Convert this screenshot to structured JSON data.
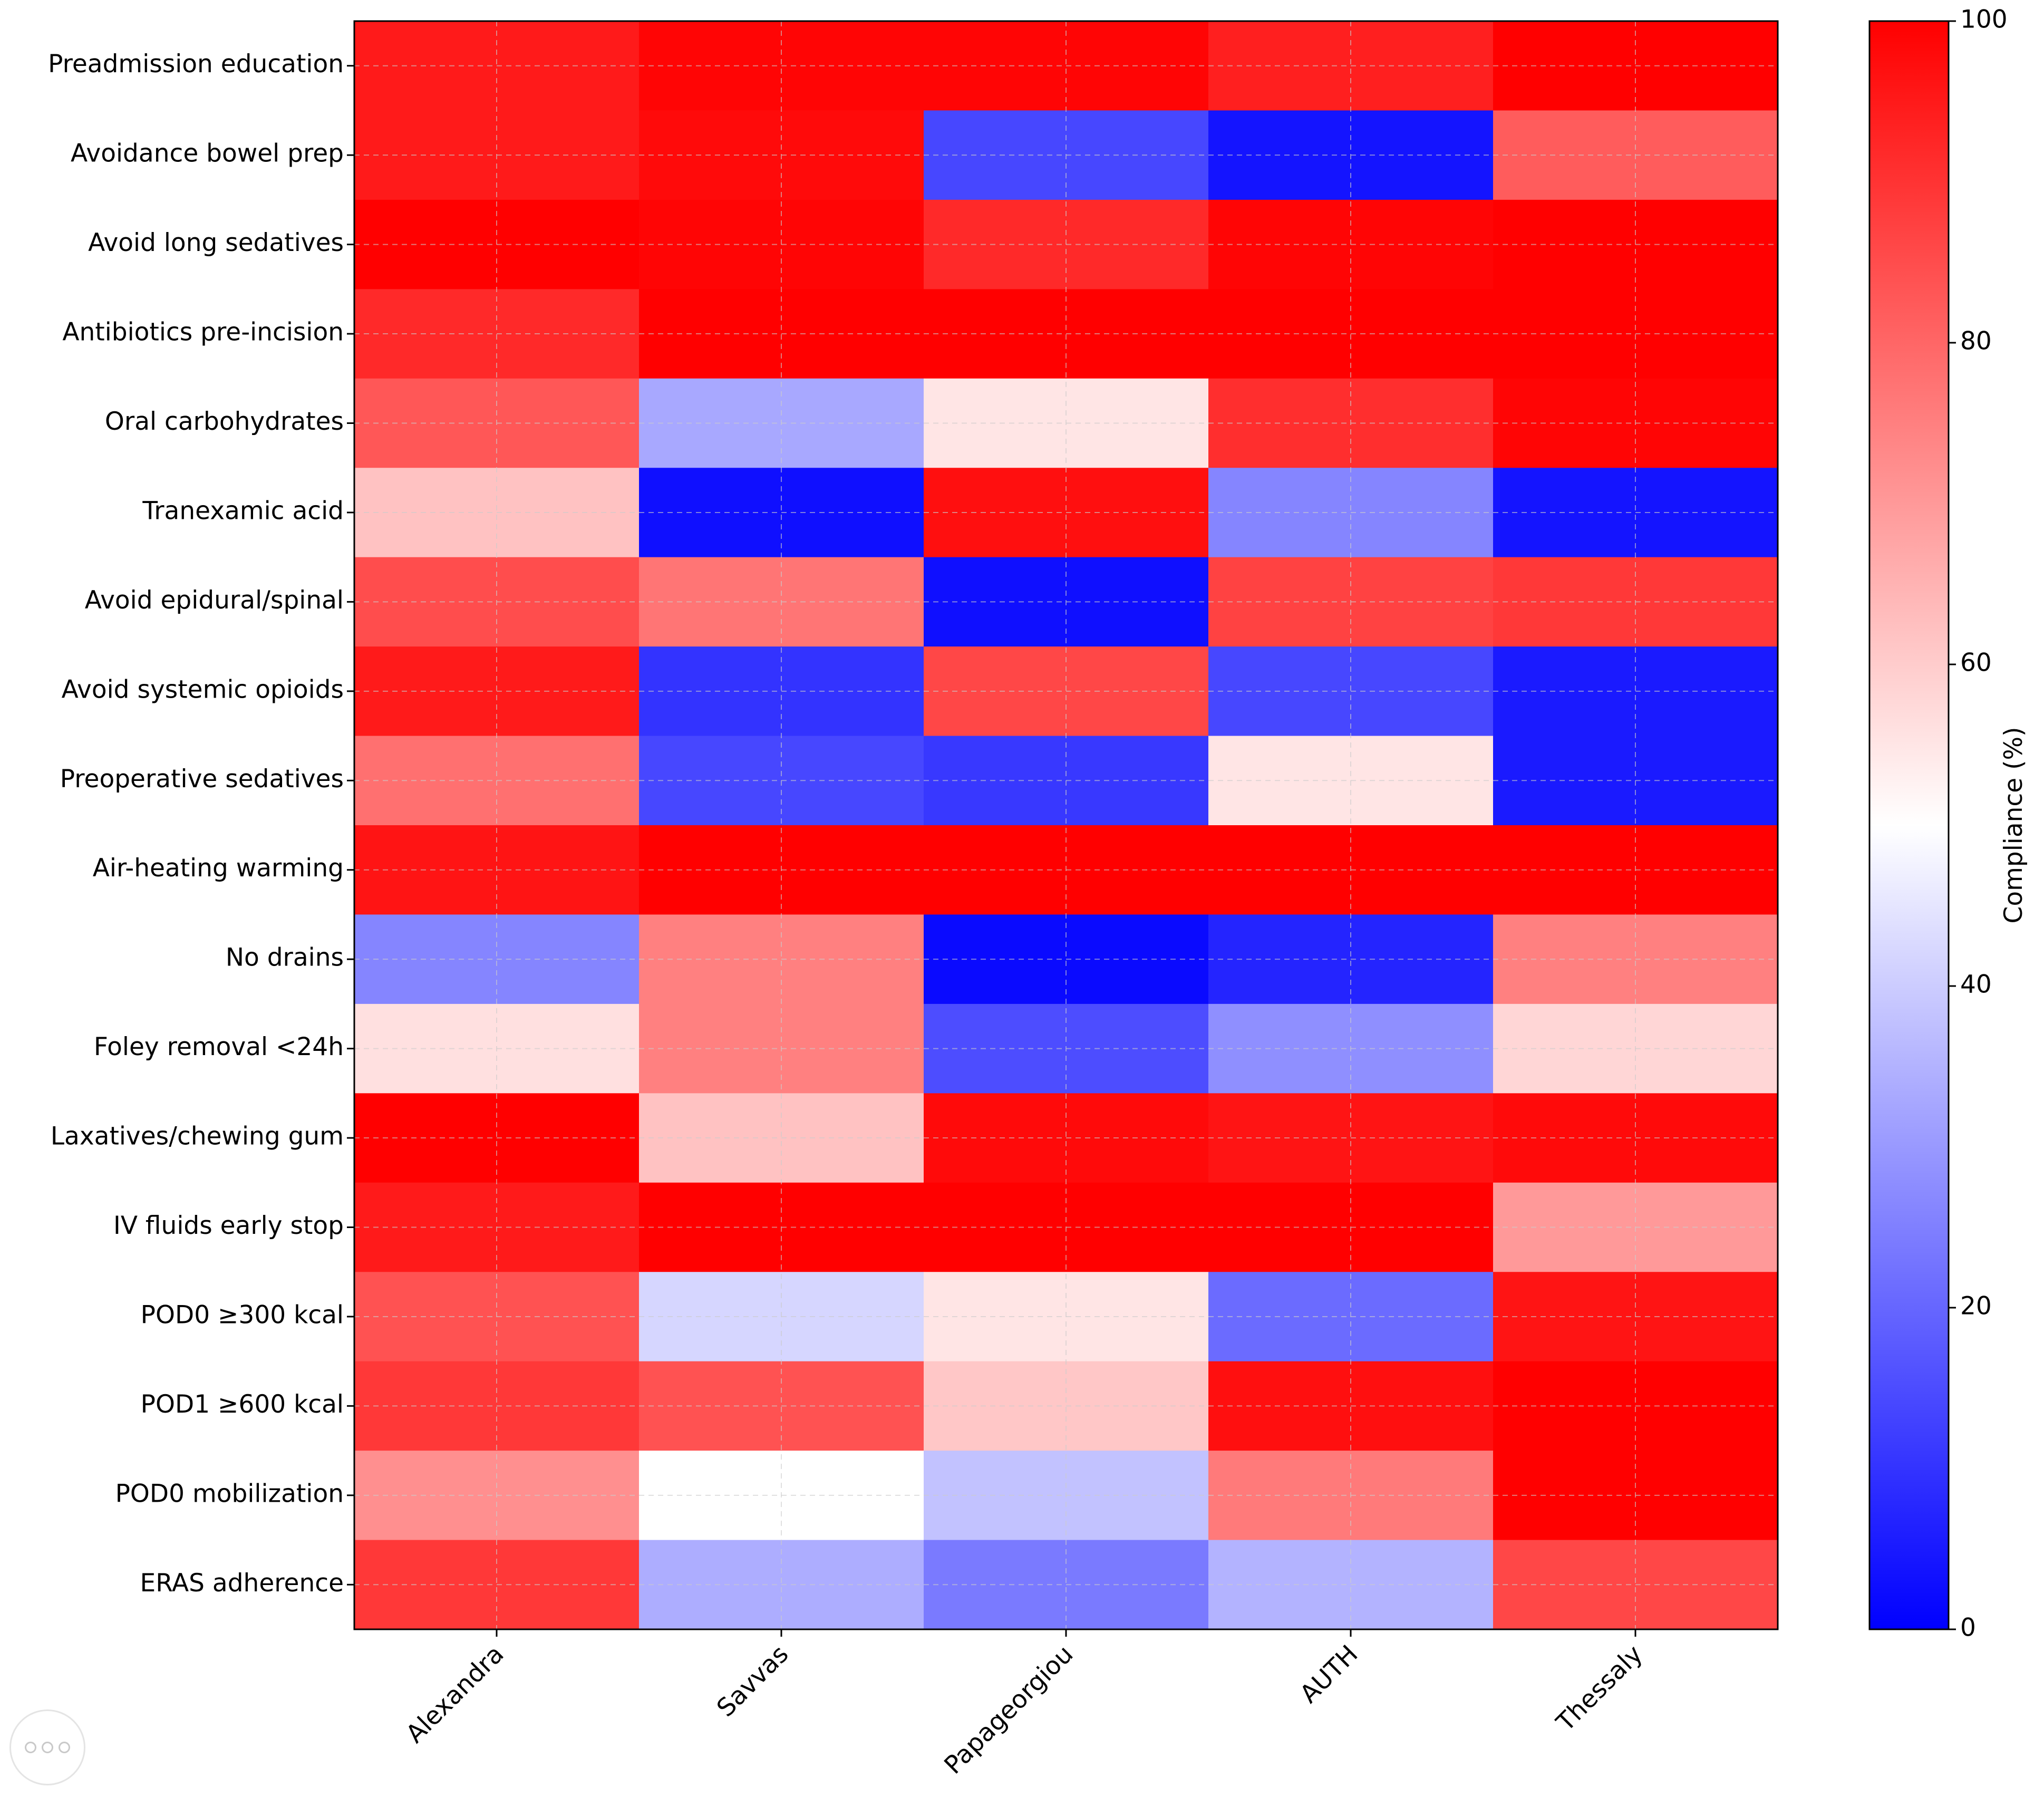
{
  "chart_data": {
    "type": "heatmap",
    "title": "",
    "xlabel": "",
    "ylabel": "",
    "columns": [
      "Alexandra",
      "Savvas",
      "Papageorgiou",
      "AUTH",
      "Thessaly"
    ],
    "rows": [
      "Preadmission education",
      "Avoidance bowel prep",
      "Avoid long sedatives",
      "Antibiotics pre-incision",
      "Oral carbohydrates",
      "Tranexamic acid",
      "Avoid epidural/spinal",
      "Avoid systemic opioids",
      "Preoperative sedatives",
      "Air-heating warming",
      "No drains",
      "Foley removal <24h",
      "Laxatives/chewing gum",
      "IV fluids early stop",
      "POD0 ≥300 kcal",
      "POD1 ≥600 kcal",
      "POD0 mobilization",
      "ERAS adherence"
    ],
    "values": [
      [
        95,
        99,
        99,
        94,
        100
      ],
      [
        95,
        98,
        14,
        4,
        82
      ],
      [
        100,
        99,
        92,
        99,
        100
      ],
      [
        92,
        100,
        100,
        100,
        100
      ],
      [
        83,
        33,
        55,
        91,
        99
      ],
      [
        62,
        3,
        97,
        26,
        4
      ],
      [
        85,
        77,
        3,
        87,
        89
      ],
      [
        95,
        10,
        86,
        14,
        5
      ],
      [
        78,
        14,
        11,
        55,
        5
      ],
      [
        96,
        100,
        100,
        100,
        100
      ],
      [
        26,
        75,
        2,
        7,
        75
      ],
      [
        56,
        75,
        15,
        28,
        58
      ],
      [
        100,
        62,
        98,
        96,
        98
      ],
      [
        95,
        100,
        100,
        100,
        70
      ],
      [
        84,
        42,
        55,
        21,
        96
      ],
      [
        89,
        84,
        61,
        97,
        100
      ],
      [
        72,
        50,
        38,
        76,
        100
      ],
      [
        89,
        34,
        24,
        35,
        86
      ]
    ],
    "colorbar": {
      "label": "Compliance (%)",
      "range": [
        0,
        100
      ],
      "ticks": [
        0,
        20,
        40,
        60,
        80,
        100
      ],
      "colors": {
        "low": "#0000ff",
        "mid": "#ffffff",
        "high": "#ff0000"
      }
    },
    "grid": true
  }
}
